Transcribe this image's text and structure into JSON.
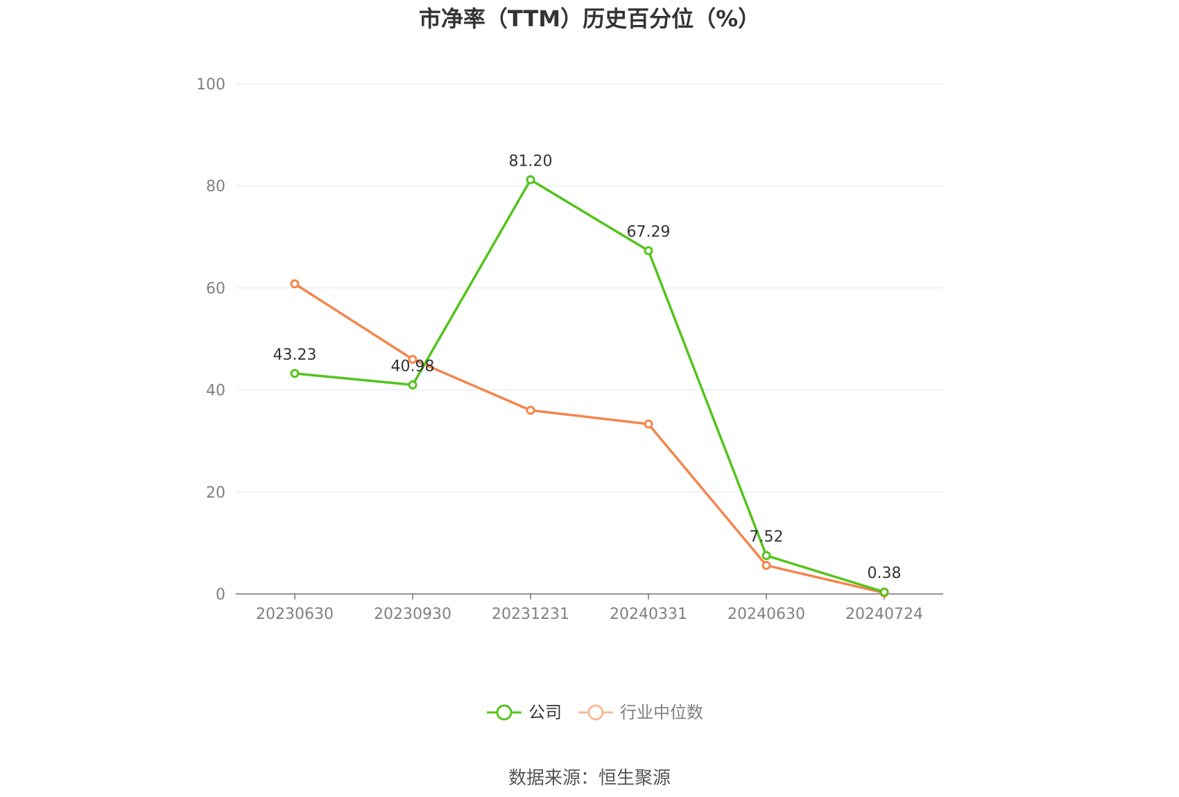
{
  "chart_data": {
    "type": "line",
    "title": "市净率（TTM）历史百分位（%）",
    "categories": [
      "20230630",
      "20230930",
      "20231231",
      "20240331",
      "20240630",
      "20240724"
    ],
    "series": [
      {
        "name": "公司",
        "color": "#52c41a",
        "values": [
          43.23,
          40.98,
          81.2,
          67.29,
          7.52,
          0.38
        ],
        "show_labels": true
      },
      {
        "name": "行业中位数",
        "color": "#f5844a",
        "values": [
          60.8,
          46.0,
          36.0,
          33.3,
          5.6,
          0.2
        ],
        "show_labels": false
      }
    ],
    "data_labels": [
      "43.23",
      "40.98",
      "81.20",
      "67.29",
      "7.52",
      "0.38"
    ],
    "ylim": [
      0,
      100
    ],
    "yticks": [
      "0",
      "20",
      "40",
      "60",
      "80",
      "100"
    ],
    "grid": true,
    "legend_position": "bottom"
  },
  "legend": {
    "company": "公司",
    "industry": "行业中位数",
    "company_color": "#52c41a",
    "industry_color": "#f5844a"
  },
  "source": "数据来源：恒生聚源"
}
